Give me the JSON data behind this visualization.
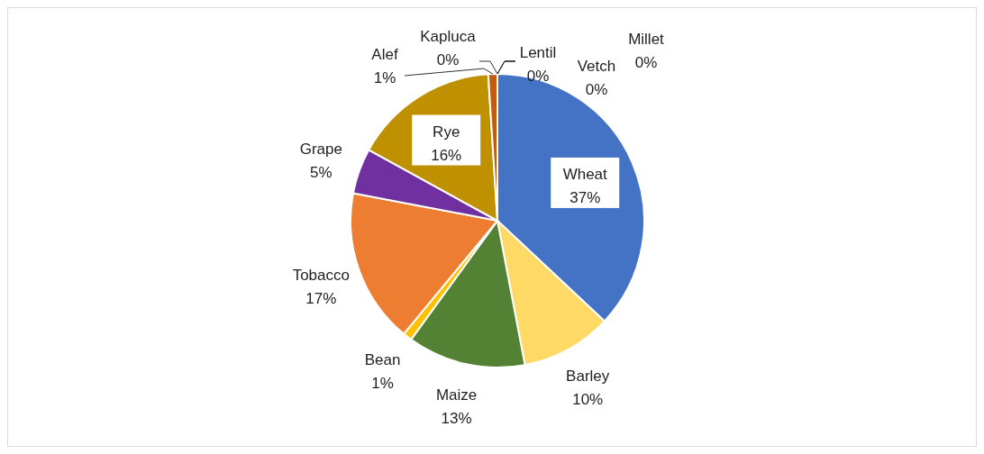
{
  "chart_data": {
    "type": "pie",
    "categories": [
      "Wheat",
      "Barley",
      "Maize",
      "Bean",
      "Tobacco",
      "Grape",
      "Rye",
      "Alef",
      "Kapluca",
      "Lentil",
      "Vetch",
      "Millet"
    ],
    "values": [
      37,
      10,
      13,
      1,
      17,
      5,
      16,
      1,
      0,
      0,
      0,
      0
    ],
    "colors": [
      "#4472c4",
      "#ffd966",
      "#548235",
      "#ffc000",
      "#ed7d31",
      "#7030a0",
      "#bf9000",
      "#c55a11",
      "#a5a5a5",
      "#5b9bd5",
      "#70ad47",
      "#264478"
    ],
    "value_labels": [
      "37%",
      "10%",
      "13%",
      "1%",
      "17%",
      "5%",
      "16%",
      "1%",
      "0%",
      "0%",
      "0%",
      "0%"
    ],
    "legend": false
  }
}
